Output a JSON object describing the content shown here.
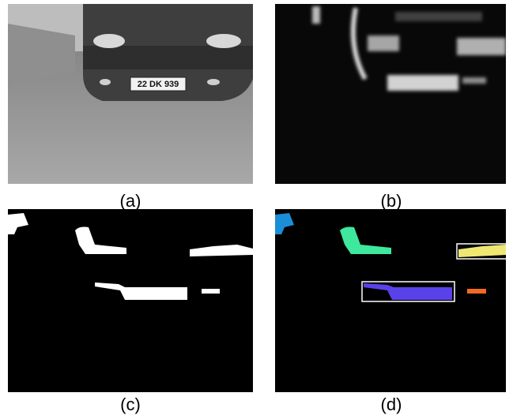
{
  "panels": [
    {
      "caption": "(a)",
      "plate": "22 DK 939"
    },
    {
      "caption": "(b)"
    },
    {
      "caption": "(c)"
    },
    {
      "caption": "(d)"
    }
  ]
}
